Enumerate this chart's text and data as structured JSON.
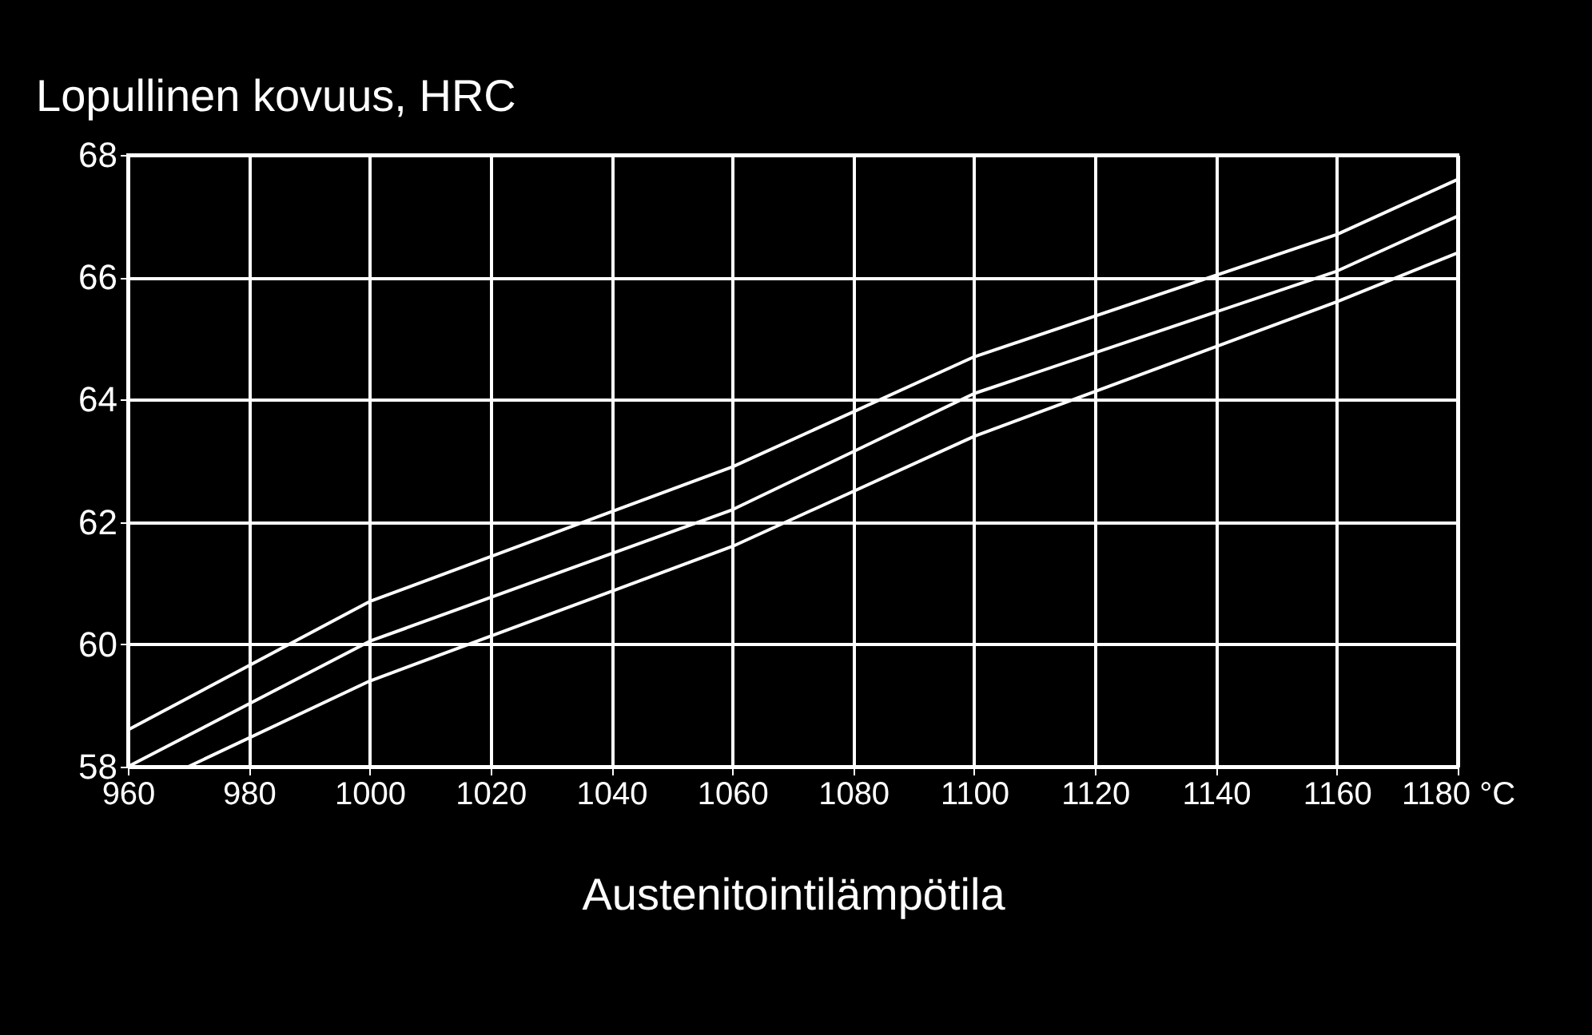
{
  "chart_data": {
    "type": "line",
    "ylabel": "Lopullinen kovuus, HRC",
    "xlabel": "Austenitointilämpötila",
    "series": [
      {
        "color": "#ffffff",
        "x": [
          960,
          1000,
          1060,
          1100,
          1160,
          1180
        ],
        "values": [
          58.0,
          60.05,
          62.2,
          64.1,
          66.1,
          67.0
        ]
      },
      {
        "color": "#ffffff",
        "x": [
          960,
          1000,
          1060,
          1100,
          1160,
          1180
        ],
        "values": [
          58.6,
          60.7,
          62.9,
          64.7,
          66.7,
          67.6
        ]
      },
      {
        "color": "#ffffff",
        "x": [
          970,
          1000,
          1060,
          1100,
          1160,
          1180
        ],
        "values": [
          58.0,
          59.4,
          61.6,
          63.4,
          65.6,
          66.4
        ]
      }
    ],
    "xlim": [
      960,
      1180
    ],
    "xticks": [
      960,
      980,
      1000,
      1020,
      1040,
      1060,
      1080,
      1100,
      1120,
      1140,
      1160,
      {
        "value": 1180,
        "label": "1180 °C"
      }
    ],
    "ylim": [
      58,
      68
    ],
    "yticks": [
      58,
      60,
      62,
      64,
      66,
      68
    ],
    "grid": true,
    "marker": "none",
    "line_style": "solid",
    "legend": false
  }
}
